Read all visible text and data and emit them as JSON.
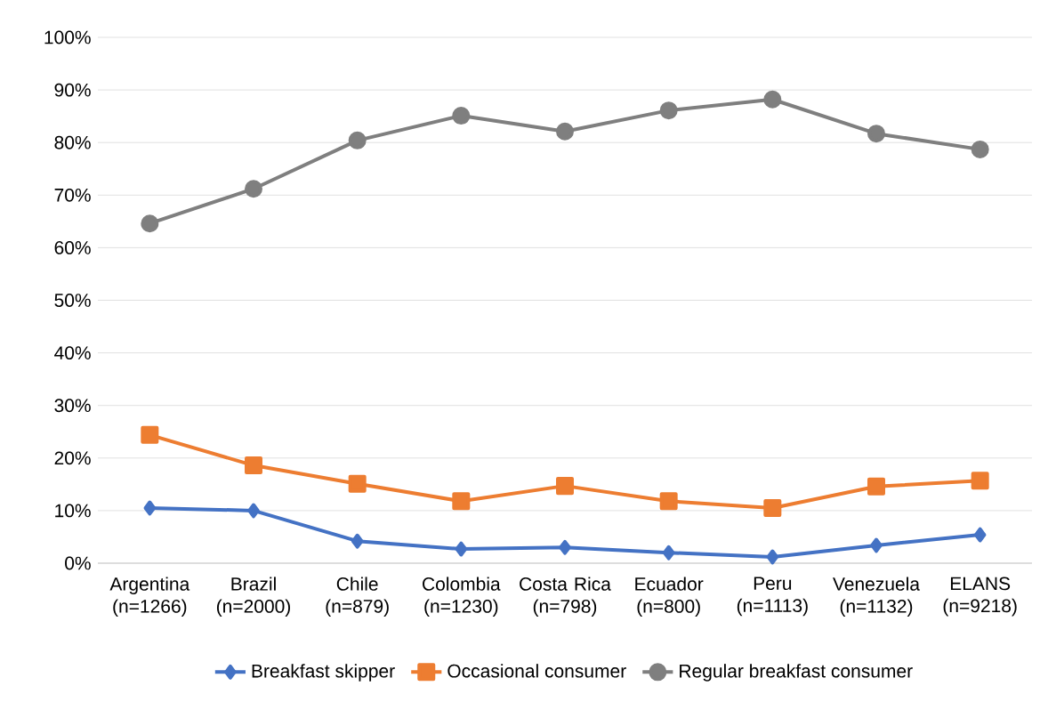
{
  "chart_data": {
    "type": "line",
    "categories": [
      "Argentina (n=1266)",
      "Brazil (n=2000)",
      "Chile (n=879)",
      "Colombia (n=1230)",
      "Costa Rica (n=798)",
      "Ecuador (n=800)",
      "Peru (n=1113)",
      "Venezuela (n=1132)",
      "ELANS (n=9218)"
    ],
    "series": [
      {
        "name": "Breakfast skipper",
        "color": "#4472c4",
        "marker": "diamond",
        "values": [
          10.5,
          10.0,
          4.2,
          2.7,
          3.0,
          2.0,
          1.2,
          3.4,
          5.4
        ]
      },
      {
        "name": "Occasional consumer",
        "color": "#ed7d31",
        "marker": "square",
        "values": [
          24.4,
          18.6,
          15.1,
          11.8,
          14.7,
          11.8,
          10.5,
          14.6,
          15.7
        ]
      },
      {
        "name": "Regular breakfast consumer",
        "color": "#7f7f7f",
        "marker": "circle",
        "values": [
          64.6,
          71.2,
          80.4,
          85.1,
          82.1,
          86.1,
          88.2,
          81.7,
          78.7
        ]
      }
    ],
    "ylim": [
      0,
      100
    ],
    "yticks": [
      {
        "value": 0,
        "label": "0%"
      },
      {
        "value": 10,
        "label": "10%"
      },
      {
        "value": 20,
        "label": "20%"
      },
      {
        "value": 30,
        "label": "30%"
      },
      {
        "value": 40,
        "label": "40%"
      },
      {
        "value": 50,
        "label": "50%"
      },
      {
        "value": 60,
        "label": "60%"
      },
      {
        "value": 70,
        "label": "70%"
      },
      {
        "value": 80,
        "label": "80%"
      },
      {
        "value": 90,
        "label": "90%"
      },
      {
        "value": 100,
        "label": "100%"
      }
    ],
    "grid": "y",
    "legend": "bottom"
  }
}
